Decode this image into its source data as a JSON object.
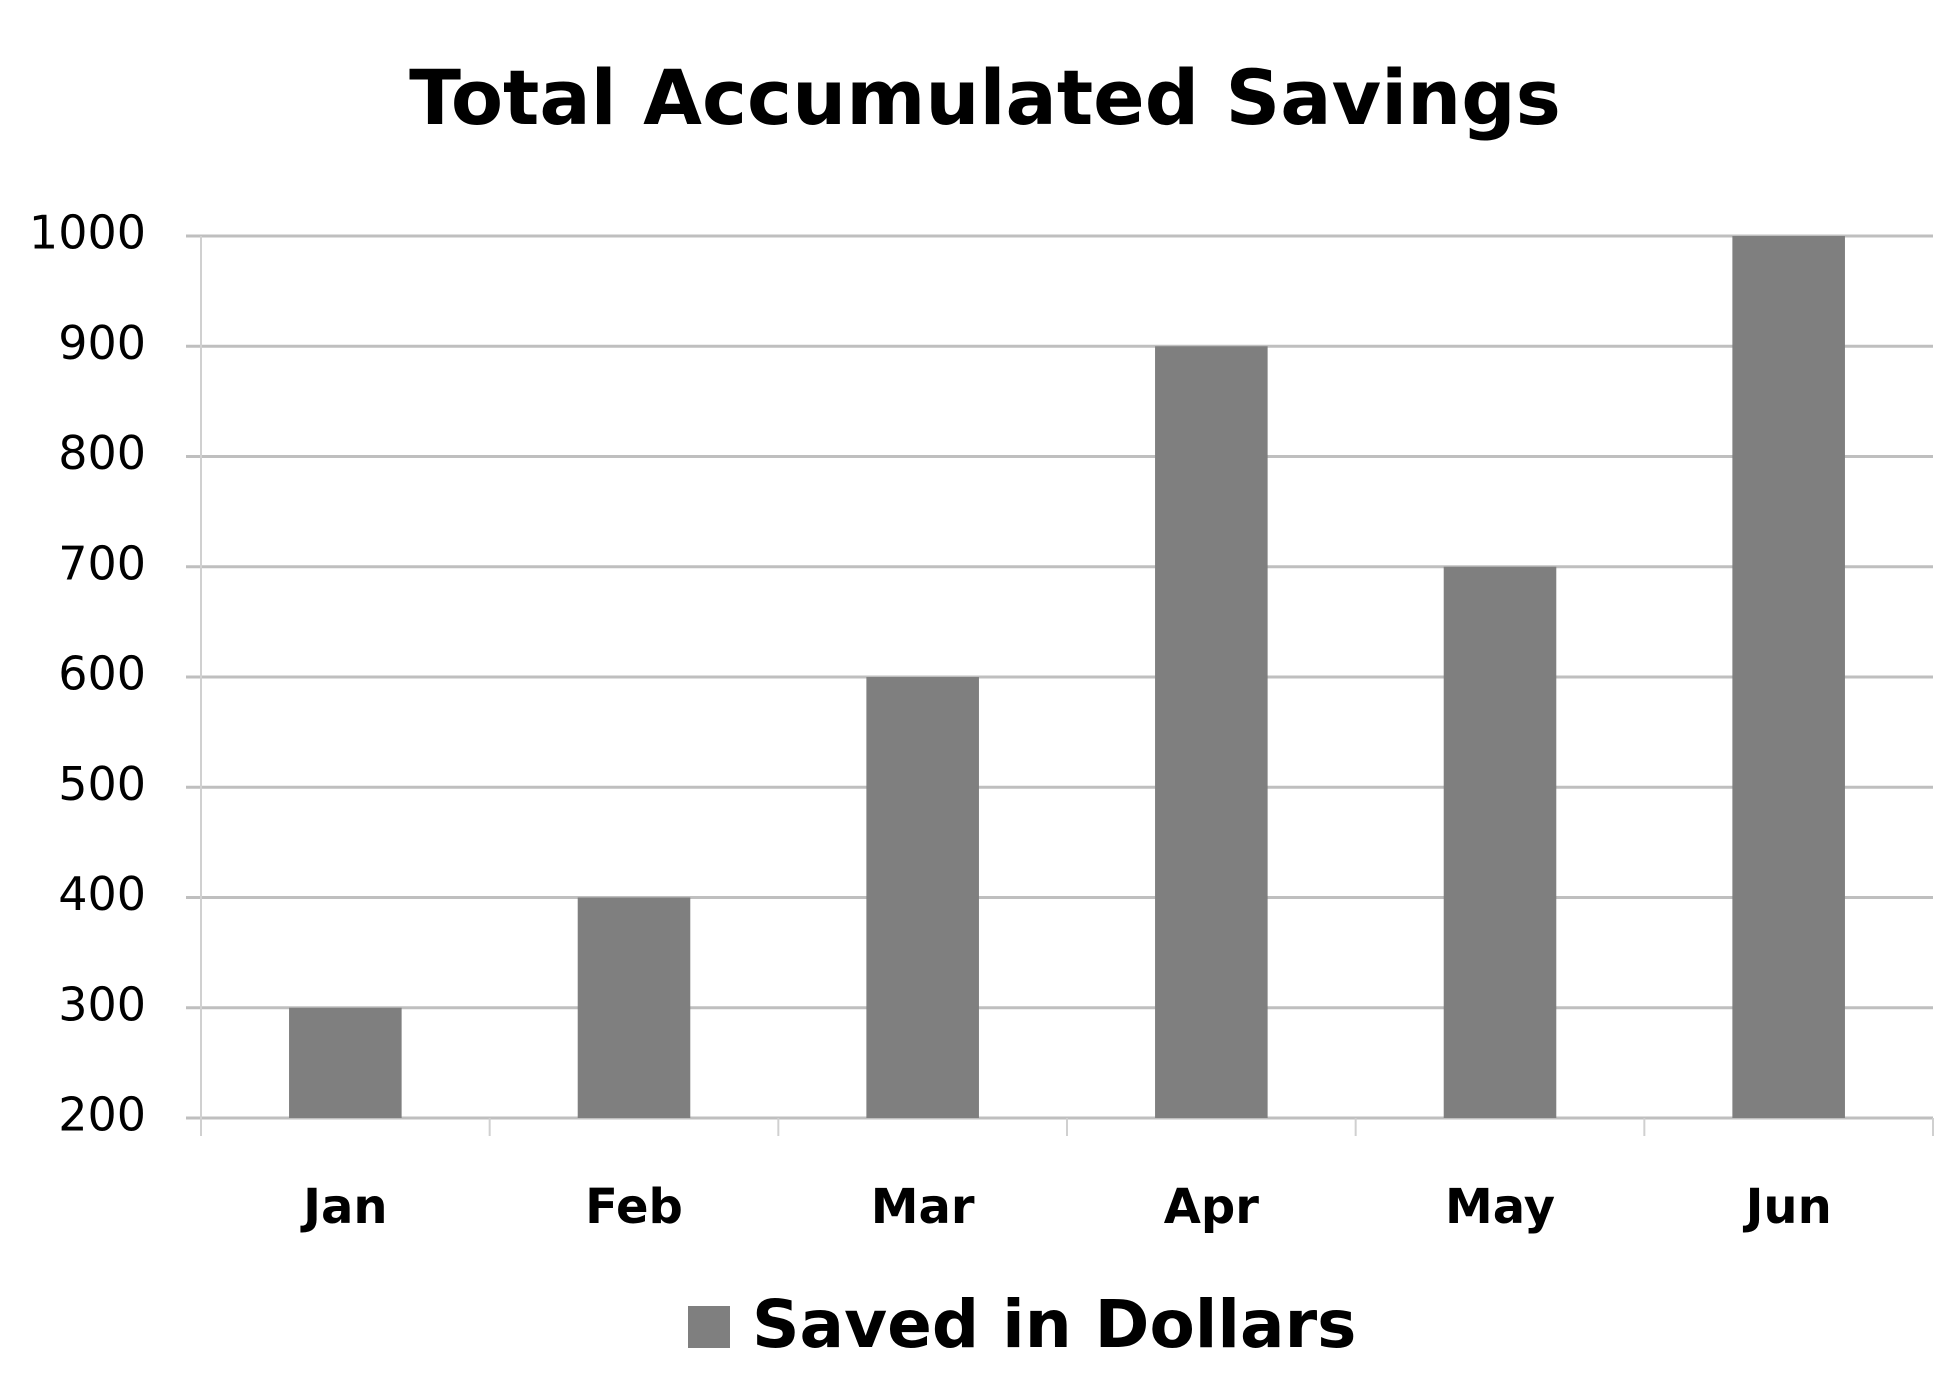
{
  "chart_data": {
    "type": "bar",
    "title": "Total Accumulated Savings",
    "categories": [
      "Jan",
      "Feb",
      "Mar",
      "Apr",
      "May",
      "Jun"
    ],
    "series": [
      {
        "name": "Saved in Dollars",
        "color": "#7f7f7f",
        "values": [
          300,
          400,
          600,
          900,
          700,
          1000
        ]
      }
    ],
    "ylim": [
      200,
      1000
    ],
    "yticks": [
      200,
      300,
      400,
      500,
      600,
      700,
      800,
      900,
      1000
    ],
    "grid": true,
    "legend": "bottom"
  }
}
